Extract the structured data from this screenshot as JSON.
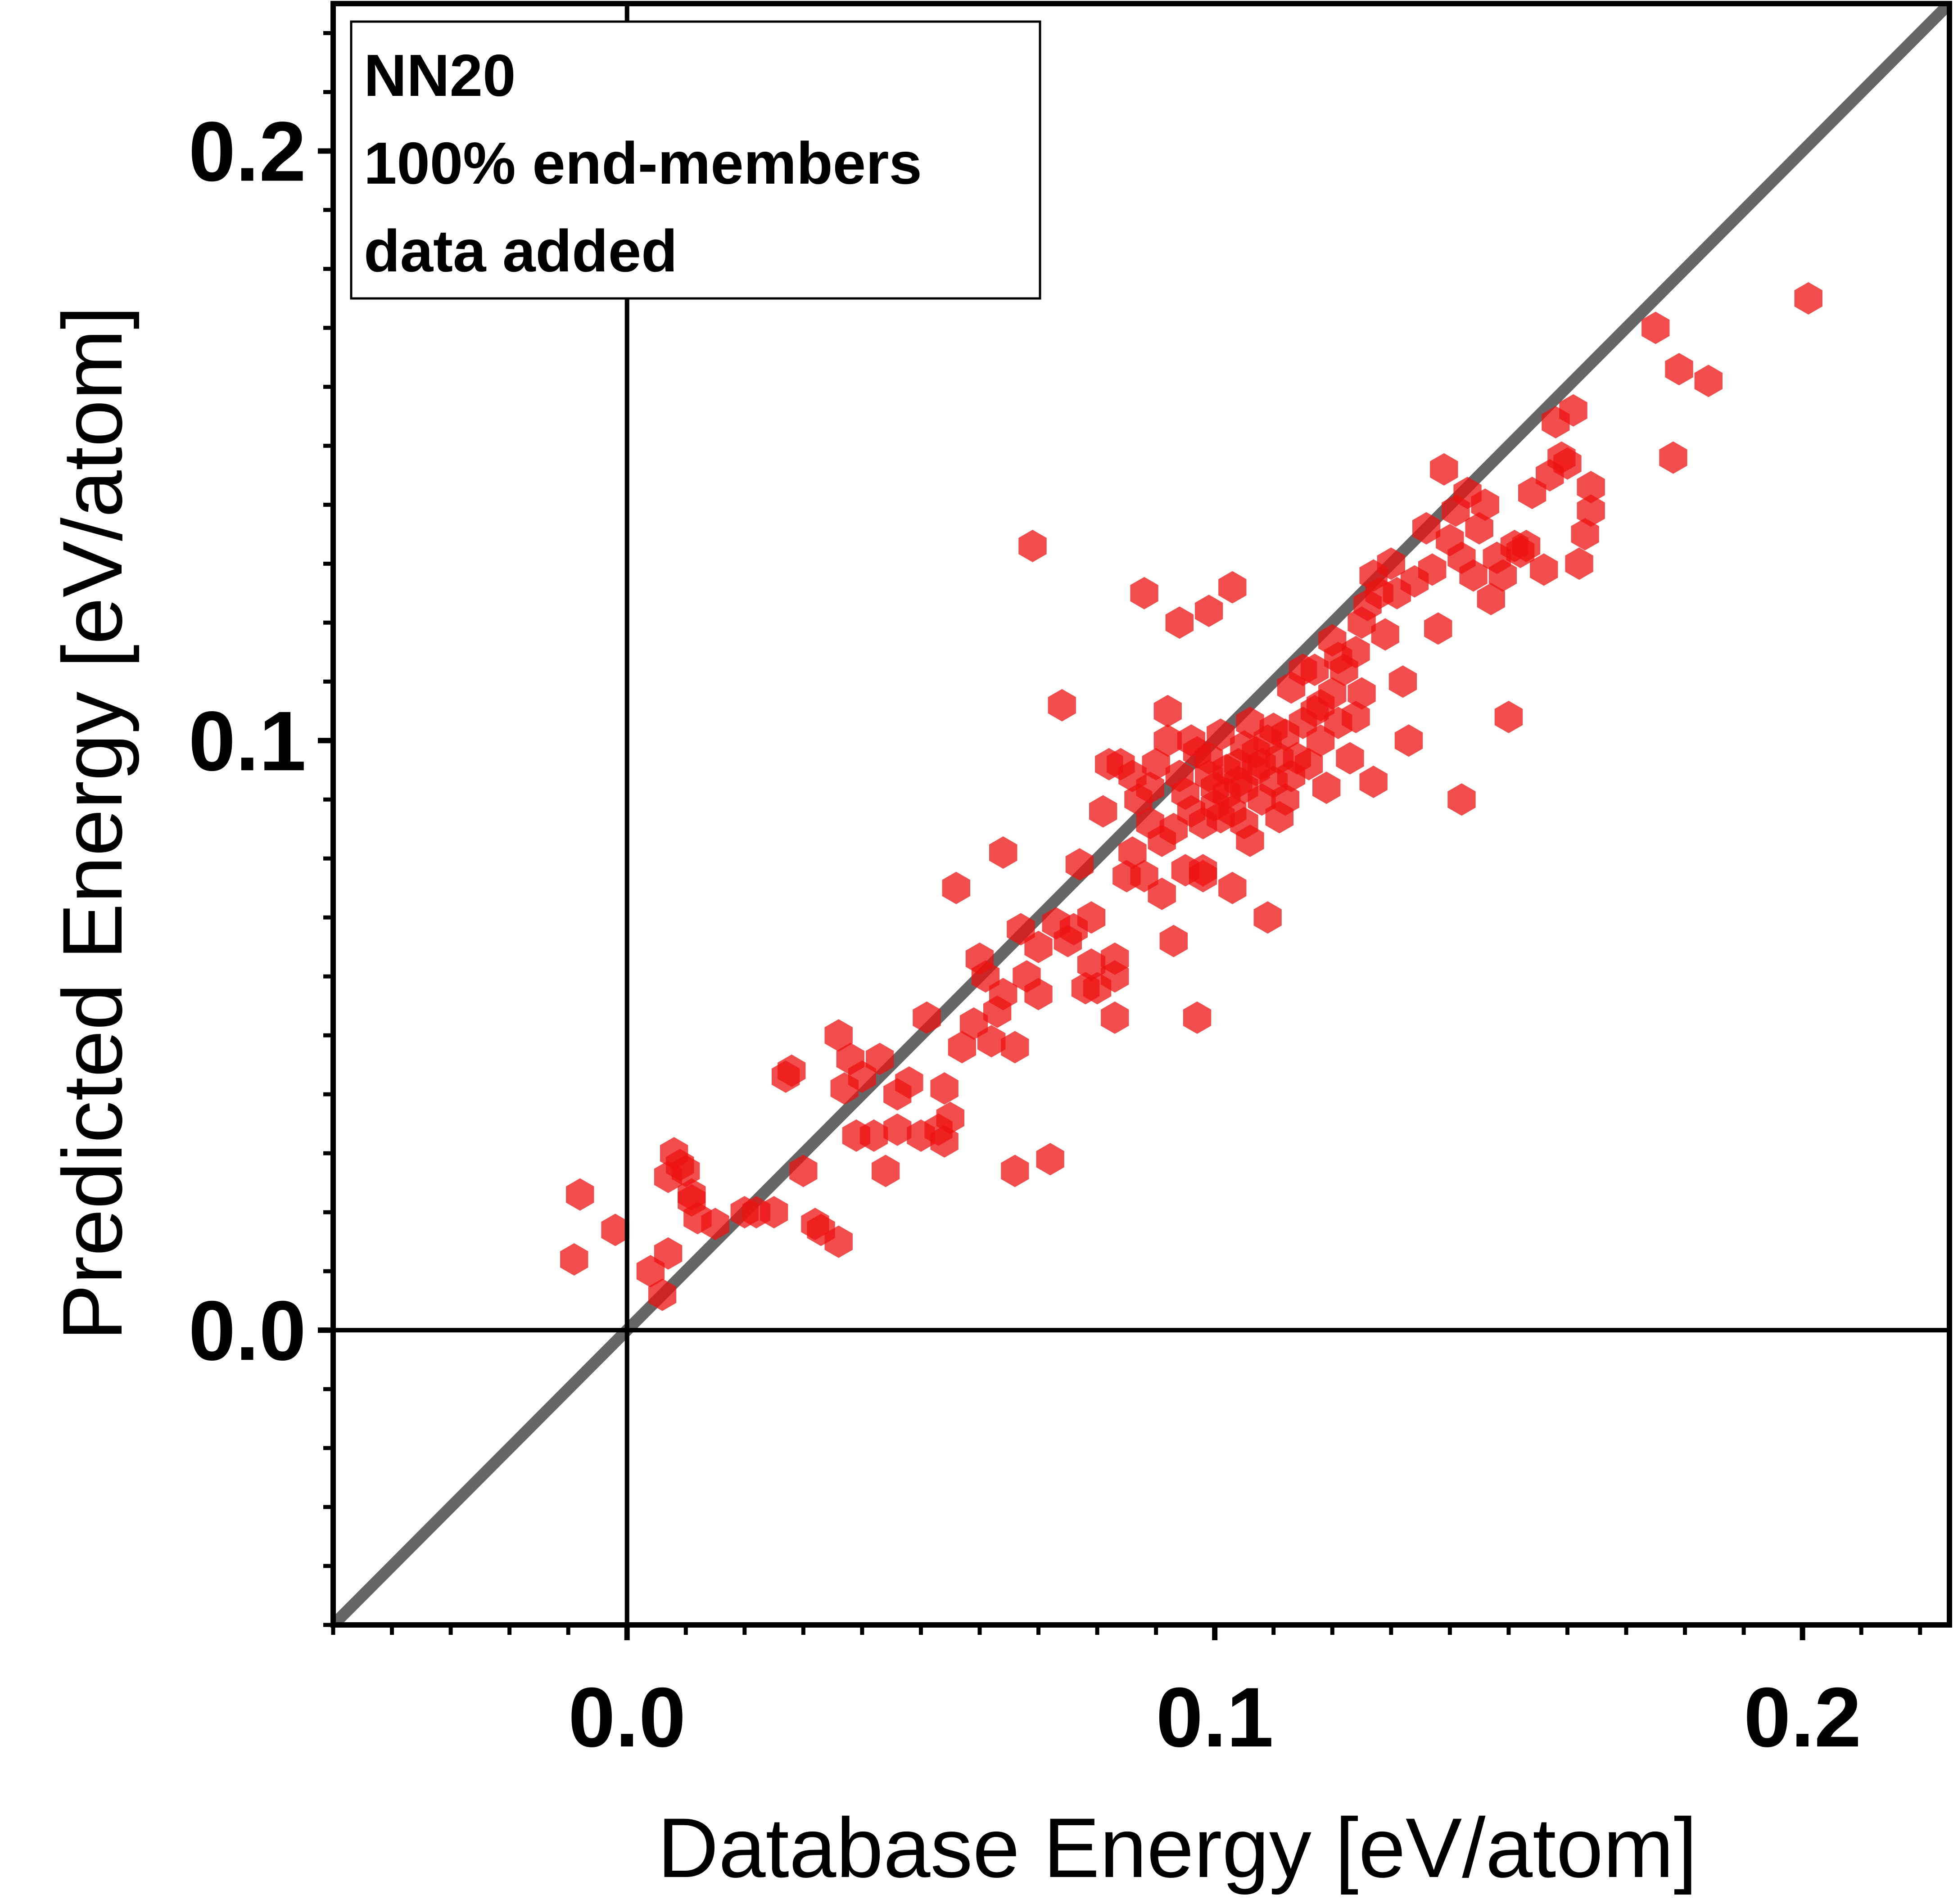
{
  "chart_data": {
    "type": "scatter",
    "title": "",
    "xlabel": "Database Energy [eV/atom]",
    "ylabel": "Predicted Energy [eV/atom]",
    "xlim": [
      -0.05,
      0.225
    ],
    "ylim": [
      -0.05,
      0.225
    ],
    "xticks": [
      0.0,
      0.1,
      0.2
    ],
    "yticks": [
      0.0,
      0.1,
      0.2
    ],
    "xtick_labels": [
      "0.0",
      "0.1",
      "0.2"
    ],
    "ytick_labels": [
      "0.0",
      "0.1",
      "0.2"
    ],
    "grid": false,
    "zero_lines": true,
    "reference_line": {
      "label": "y = x",
      "color": "#666666"
    },
    "marker": {
      "shape": "hexagon",
      "color": "#ee1111",
      "opacity": 0.75
    },
    "annotation": {
      "lines": [
        "NN20",
        "100% end-members",
        "data added"
      ],
      "position": "top-left"
    },
    "series": [
      {
        "name": "NN20",
        "points": [
          [
            -0.009,
            0.012
          ],
          [
            -0.008,
            0.023
          ],
          [
            -0.002,
            0.017
          ],
          [
            0.004,
            0.01
          ],
          [
            0.006,
            0.006
          ],
          [
            0.007,
            0.013
          ],
          [
            0.007,
            0.026
          ],
          [
            0.008,
            0.03
          ],
          [
            0.009,
            0.028
          ],
          [
            0.01,
            0.027
          ],
          [
            0.011,
            0.023
          ],
          [
            0.012,
            0.019
          ],
          [
            0.02,
            0.02
          ],
          [
            0.022,
            0.02
          ],
          [
            0.025,
            0.02
          ],
          [
            0.027,
            0.043
          ],
          [
            0.028,
            0.044
          ],
          [
            0.03,
            0.027
          ],
          [
            0.032,
            0.018
          ],
          [
            0.033,
            0.017
          ],
          [
            0.036,
            0.015
          ],
          [
            0.036,
            0.05
          ],
          [
            0.037,
            0.041
          ],
          [
            0.039,
            0.033
          ],
          [
            0.04,
            0.043
          ],
          [
            0.042,
            0.033
          ],
          [
            0.043,
            0.046
          ],
          [
            0.044,
            0.027
          ],
          [
            0.046,
            0.034
          ],
          [
            0.046,
            0.04
          ],
          [
            0.05,
            0.033
          ],
          [
            0.051,
            0.053
          ],
          [
            0.053,
            0.034
          ],
          [
            0.054,
            0.041
          ],
          [
            0.055,
            0.036
          ],
          [
            0.056,
            0.075
          ],
          [
            0.057,
            0.048
          ],
          [
            0.059,
            0.052
          ],
          [
            0.06,
            0.063
          ],
          [
            0.062,
            0.049
          ],
          [
            0.063,
            0.054
          ],
          [
            0.064,
            0.057
          ],
          [
            0.064,
            0.081
          ],
          [
            0.066,
            0.048
          ],
          [
            0.066,
            0.027
          ],
          [
            0.067,
            0.068
          ],
          [
            0.068,
            0.06
          ],
          [
            0.069,
            0.133
          ],
          [
            0.07,
            0.057
          ],
          [
            0.07,
            0.065
          ],
          [
            0.072,
            0.029
          ],
          [
            0.073,
            0.069
          ],
          [
            0.074,
            0.106
          ],
          [
            0.076,
            0.068
          ],
          [
            0.077,
            0.079
          ],
          [
            0.078,
            0.058
          ],
          [
            0.079,
            0.07
          ],
          [
            0.08,
            0.058
          ],
          [
            0.081,
            0.088
          ],
          [
            0.082,
            0.096
          ],
          [
            0.083,
            0.06
          ],
          [
            0.083,
            0.063
          ],
          [
            0.083,
            0.053
          ],
          [
            0.084,
            0.096
          ],
          [
            0.085,
            0.077
          ],
          [
            0.086,
            0.081
          ],
          [
            0.087,
            0.09
          ],
          [
            0.088,
            0.077
          ],
          [
            0.089,
            0.086
          ],
          [
            0.09,
            0.096
          ],
          [
            0.091,
            0.083
          ],
          [
            0.091,
            0.074
          ],
          [
            0.092,
            0.1
          ],
          [
            0.093,
            0.066
          ],
          [
            0.094,
            0.094
          ],
          [
            0.095,
            0.091
          ],
          [
            0.095,
            0.078
          ],
          [
            0.096,
            0.088
          ],
          [
            0.097,
            0.053
          ],
          [
            0.097,
            0.098
          ],
          [
            0.098,
            0.086
          ],
          [
            0.098,
            0.077
          ],
          [
            0.099,
            0.094
          ],
          [
            0.1,
            0.092
          ],
          [
            0.1,
            0.089
          ],
          [
            0.101,
            0.101
          ],
          [
            0.102,
            0.095
          ],
          [
            0.103,
            0.075
          ],
          [
            0.103,
            0.088
          ],
          [
            0.104,
            0.096
          ],
          [
            0.105,
            0.099
          ],
          [
            0.105,
            0.092
          ],
          [
            0.106,
            0.083
          ],
          [
            0.106,
            0.103
          ],
          [
            0.107,
            0.098
          ],
          [
            0.108,
            0.09
          ],
          [
            0.108,
            0.096
          ],
          [
            0.109,
            0.1
          ],
          [
            0.109,
            0.07
          ],
          [
            0.11,
            0.093
          ],
          [
            0.111,
            0.097
          ],
          [
            0.111,
            0.087
          ],
          [
            0.112,
            0.101
          ],
          [
            0.113,
            0.094
          ],
          [
            0.113,
            0.109
          ],
          [
            0.114,
            0.097
          ],
          [
            0.115,
            0.103
          ],
          [
            0.116,
            0.096
          ],
          [
            0.117,
            0.105
          ],
          [
            0.117,
            0.112
          ],
          [
            0.118,
            0.106
          ],
          [
            0.119,
            0.092
          ],
          [
            0.12,
            0.108
          ],
          [
            0.12,
            0.117
          ],
          [
            0.121,
            0.103
          ],
          [
            0.122,
            0.112
          ],
          [
            0.123,
            0.097
          ],
          [
            0.124,
            0.115
          ],
          [
            0.125,
            0.108
          ],
          [
            0.125,
            0.12
          ],
          [
            0.126,
            0.123
          ],
          [
            0.127,
            0.093
          ],
          [
            0.127,
            0.128
          ],
          [
            0.128,
            0.125
          ],
          [
            0.129,
            0.118
          ],
          [
            0.13,
            0.13
          ],
          [
            0.131,
            0.125
          ],
          [
            0.132,
            0.11
          ],
          [
            0.133,
            0.1
          ],
          [
            0.134,
            0.127
          ],
          [
            0.136,
            0.136
          ],
          [
            0.137,
            0.129
          ],
          [
            0.138,
            0.119
          ],
          [
            0.139,
            0.146
          ],
          [
            0.14,
            0.134
          ],
          [
            0.141,
            0.139
          ],
          [
            0.142,
            0.09
          ],
          [
            0.142,
            0.131
          ],
          [
            0.143,
            0.142
          ],
          [
            0.144,
            0.128
          ],
          [
            0.145,
            0.136
          ],
          [
            0.146,
            0.14
          ],
          [
            0.147,
            0.124
          ],
          [
            0.148,
            0.131
          ],
          [
            0.149,
            0.128
          ],
          [
            0.15,
            0.104
          ],
          [
            0.151,
            0.133
          ],
          [
            0.152,
            0.132
          ],
          [
            0.153,
            0.133
          ],
          [
            0.154,
            0.142
          ],
          [
            0.156,
            0.129
          ],
          [
            0.157,
            0.145
          ],
          [
            0.158,
            0.154
          ],
          [
            0.159,
            0.148
          ],
          [
            0.16,
            0.147
          ],
          [
            0.161,
            0.156
          ],
          [
            0.162,
            0.13
          ],
          [
            0.163,
            0.135
          ],
          [
            0.164,
            0.139
          ],
          [
            0.164,
            0.143
          ],
          [
            0.175,
            0.17
          ],
          [
            0.178,
            0.148
          ],
          [
            0.179,
            0.163
          ],
          [
            0.184,
            0.161
          ],
          [
            0.201,
            0.175
          ],
          [
            0.011,
            0.022
          ],
          [
            0.015,
            0.018
          ],
          [
            0.038,
            0.046
          ],
          [
            0.048,
            0.042
          ],
          [
            0.054,
            0.032
          ],
          [
            0.061,
            0.06
          ],
          [
            0.075,
            0.066
          ],
          [
            0.079,
            0.062
          ],
          [
            0.086,
            0.094
          ],
          [
            0.089,
            0.092
          ],
          [
            0.093,
            0.085
          ],
          [
            0.096,
            0.1
          ],
          [
            0.099,
            0.097
          ],
          [
            0.101,
            0.087
          ],
          [
            0.102,
            0.091
          ],
          [
            0.104,
            0.093
          ],
          [
            0.107,
            0.095
          ],
          [
            0.11,
            0.102
          ],
          [
            0.112,
            0.09
          ],
          [
            0.115,
            0.112
          ],
          [
            0.118,
            0.1
          ],
          [
            0.121,
            0.114
          ],
          [
            0.124,
            0.104
          ],
          [
            0.099,
            0.122
          ],
          [
            0.103,
            0.126
          ],
          [
            0.088,
            0.125
          ],
          [
            0.094,
            0.12
          ],
          [
            0.098,
            0.078
          ],
          [
            0.105,
            0.086
          ],
          [
            0.092,
            0.105
          ]
        ]
      }
    ]
  }
}
